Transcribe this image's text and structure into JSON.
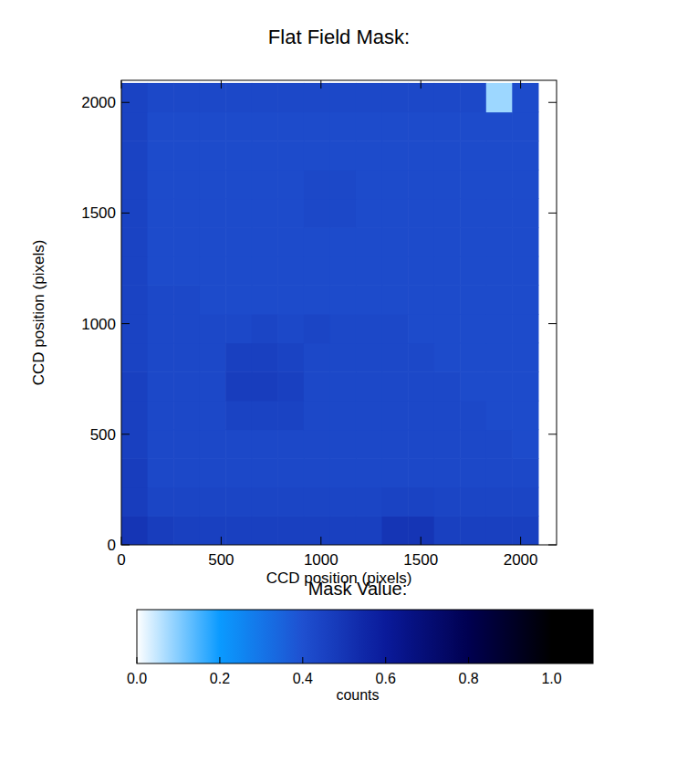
{
  "chart_data": {
    "type": "heatmap",
    "title": "Flat Field Mask:",
    "x_label": "CCD position (pixels)",
    "y_label": "CCD position (pixels)",
    "xlim": [
      0,
      2180
    ],
    "ylim": [
      0,
      2100
    ],
    "xticks": [
      0,
      500,
      1000,
      1500,
      2000
    ],
    "yticks": [
      0,
      500,
      1000,
      1500,
      2000
    ],
    "x_edges": [
      0,
      130.5,
      261,
      391.5,
      522,
      652.5,
      783,
      913.5,
      1044,
      1174.5,
      1305,
      1435.5,
      1566,
      1696.5,
      1827,
      1957.5,
      2088
    ],
    "y_edges": [
      0,
      130.5,
      261,
      391.5,
      522,
      652.5,
      783,
      913.5,
      1044,
      1174.5,
      1305,
      1435.5,
      1566,
      1696.5,
      1827,
      1957.5,
      2088
    ],
    "cells": [
      [
        0.5,
        0.47,
        0.46,
        0.46,
        0.46,
        0.46,
        0.46,
        0.46,
        0.46,
        0.46,
        0.5,
        0.5,
        0.46,
        0.46,
        0.46,
        0.46
      ],
      [
        0.47,
        0.44,
        0.44,
        0.44,
        0.44,
        0.44,
        0.44,
        0.44,
        0.44,
        0.44,
        0.45,
        0.45,
        0.44,
        0.44,
        0.44,
        0.44
      ],
      [
        0.47,
        0.43,
        0.43,
        0.43,
        0.43,
        0.43,
        0.43,
        0.43,
        0.43,
        0.43,
        0.43,
        0.43,
        0.43,
        0.43,
        0.43,
        0.43
      ],
      [
        0.46,
        0.43,
        0.43,
        0.43,
        0.43,
        0.43,
        0.43,
        0.43,
        0.43,
        0.43,
        0.43,
        0.43,
        0.43,
        0.43,
        0.43,
        0.42
      ],
      [
        0.46,
        0.43,
        0.43,
        0.43,
        0.45,
        0.45,
        0.45,
        0.43,
        0.43,
        0.43,
        0.43,
        0.43,
        0.43,
        0.43,
        0.42,
        0.42
      ],
      [
        0.46,
        0.43,
        0.43,
        0.43,
        0.47,
        0.47,
        0.46,
        0.43,
        0.43,
        0.43,
        0.43,
        0.43,
        0.43,
        0.42,
        0.42,
        0.42
      ],
      [
        0.45,
        0.43,
        0.43,
        0.43,
        0.46,
        0.46,
        0.45,
        0.43,
        0.43,
        0.43,
        0.43,
        0.43,
        0.42,
        0.42,
        0.42,
        0.42
      ],
      [
        0.45,
        0.43,
        0.43,
        0.43,
        0.43,
        0.44,
        0.43,
        0.44,
        0.43,
        0.43,
        0.43,
        0.42,
        0.42,
        0.42,
        0.42,
        0.42
      ],
      [
        0.45,
        0.43,
        0.43,
        0.42,
        0.42,
        0.42,
        0.42,
        0.42,
        0.42,
        0.42,
        0.42,
        0.42,
        0.42,
        0.42,
        0.42,
        0.42
      ],
      [
        0.45,
        0.42,
        0.42,
        0.42,
        0.42,
        0.42,
        0.42,
        0.42,
        0.42,
        0.42,
        0.42,
        0.42,
        0.42,
        0.42,
        0.42,
        0.42
      ],
      [
        0.45,
        0.42,
        0.42,
        0.42,
        0.42,
        0.42,
        0.42,
        0.42,
        0.42,
        0.42,
        0.42,
        0.42,
        0.42,
        0.42,
        0.42,
        0.42
      ],
      [
        0.45,
        0.42,
        0.42,
        0.42,
        0.42,
        0.42,
        0.42,
        0.43,
        0.43,
        0.42,
        0.42,
        0.42,
        0.42,
        0.42,
        0.42,
        0.42
      ],
      [
        0.45,
        0.42,
        0.42,
        0.42,
        0.42,
        0.42,
        0.42,
        0.43,
        0.43,
        0.42,
        0.42,
        0.42,
        0.42,
        0.42,
        0.42,
        0.42
      ],
      [
        0.45,
        0.42,
        0.42,
        0.42,
        0.42,
        0.42,
        0.42,
        0.42,
        0.42,
        0.42,
        0.42,
        0.42,
        0.42,
        0.42,
        0.42,
        0.42
      ],
      [
        0.45,
        0.42,
        0.42,
        0.42,
        0.42,
        0.42,
        0.42,
        0.42,
        0.42,
        0.42,
        0.42,
        0.42,
        0.42,
        0.42,
        0.42,
        0.42
      ],
      [
        0.45,
        0.43,
        0.43,
        0.43,
        0.43,
        0.43,
        0.43,
        0.43,
        0.43,
        0.43,
        0.43,
        0.43,
        0.43,
        0.43,
        0.08,
        0.42
      ]
    ],
    "colorbar": {
      "title": "Mask Value:",
      "label": "counts",
      "range": [
        0,
        1.1
      ],
      "ticks": [
        {
          "value": 0,
          "label": "0.0"
        },
        {
          "value": 0.2,
          "label": "0.2"
        },
        {
          "value": 0.4,
          "label": "0.4"
        },
        {
          "value": 0.6,
          "label": "0.6"
        },
        {
          "value": 0.8,
          "label": "0.8"
        },
        {
          "value": 1,
          "label": "1.0"
        }
      ]
    }
  }
}
